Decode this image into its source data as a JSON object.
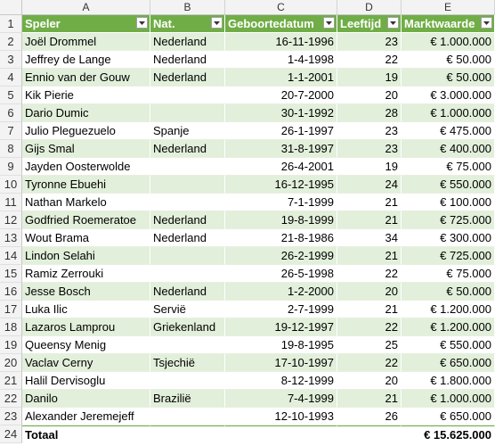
{
  "columns": [
    "A",
    "B",
    "C",
    "D",
    "E"
  ],
  "header_row_number": "1",
  "headers": [
    "Speler",
    "Nat.",
    "Geboortedatum",
    "Leeftijd",
    "Marktwaarde"
  ],
  "rows": [
    {
      "n": "2",
      "speler": "Joël Drommel",
      "nat": "Nederland",
      "geb": "16-11-1996",
      "leeftijd": "23",
      "waarde": "€ 1.000.000"
    },
    {
      "n": "3",
      "speler": "Jeffrey de Lange",
      "nat": "Nederland",
      "geb": "1-4-1998",
      "leeftijd": "22",
      "waarde": "€ 50.000"
    },
    {
      "n": "4",
      "speler": "Ennio van der Gouw",
      "nat": "Nederland",
      "geb": "1-1-2001",
      "leeftijd": "19",
      "waarde": "€ 50.000"
    },
    {
      "n": "5",
      "speler": "Kik Pierie",
      "nat": "",
      "geb": "20-7-2000",
      "leeftijd": "20",
      "waarde": "€ 3.000.000"
    },
    {
      "n": "6",
      "speler": "Dario Dumic",
      "nat": "",
      "geb": "30-1-1992",
      "leeftijd": "28",
      "waarde": "€ 1.000.000"
    },
    {
      "n": "7",
      "speler": "Julio Pleguezuelo",
      "nat": "Spanje",
      "geb": "26-1-1997",
      "leeftijd": "23",
      "waarde": "€ 475.000"
    },
    {
      "n": "8",
      "speler": "Gijs Smal",
      "nat": "Nederland",
      "geb": "31-8-1997",
      "leeftijd": "23",
      "waarde": "€ 400.000"
    },
    {
      "n": "9",
      "speler": "Jayden Oosterwolde",
      "nat": "",
      "geb": "26-4-2001",
      "leeftijd": "19",
      "waarde": "€ 75.000"
    },
    {
      "n": "10",
      "speler": "Tyronne Ebuehi",
      "nat": "",
      "geb": "16-12-1995",
      "leeftijd": "24",
      "waarde": "€ 550.000"
    },
    {
      "n": "11",
      "speler": "Nathan Markelo",
      "nat": "",
      "geb": "7-1-1999",
      "leeftijd": "21",
      "waarde": "€ 100.000"
    },
    {
      "n": "12",
      "speler": "Godfried Roemeratoe",
      "nat": "Nederland",
      "geb": "19-8-1999",
      "leeftijd": "21",
      "waarde": "€ 725.000"
    },
    {
      "n": "13",
      "speler": "Wout Brama",
      "nat": "Nederland",
      "geb": "21-8-1986",
      "leeftijd": "34",
      "waarde": "€ 300.000"
    },
    {
      "n": "14",
      "speler": "Lindon Selahi",
      "nat": "",
      "geb": "26-2-1999",
      "leeftijd": "21",
      "waarde": "€ 725.000"
    },
    {
      "n": "15",
      "speler": "Ramiz Zerrouki",
      "nat": "",
      "geb": "26-5-1998",
      "leeftijd": "22",
      "waarde": "€ 75.000"
    },
    {
      "n": "16",
      "speler": "Jesse Bosch",
      "nat": "Nederland",
      "geb": "1-2-2000",
      "leeftijd": "20",
      "waarde": "€ 50.000"
    },
    {
      "n": "17",
      "speler": "Luka Ilic",
      "nat": "Servië",
      "geb": "2-7-1999",
      "leeftijd": "21",
      "waarde": "€ 1.200.000"
    },
    {
      "n": "18",
      "speler": "Lazaros Lamprou",
      "nat": "Griekenland",
      "geb": "19-12-1997",
      "leeftijd": "22",
      "waarde": "€ 1.200.000"
    },
    {
      "n": "19",
      "speler": "Queensy Menig",
      "nat": "",
      "geb": "19-8-1995",
      "leeftijd": "25",
      "waarde": "€ 550.000"
    },
    {
      "n": "20",
      "speler": "Vaclav Cerny",
      "nat": "Tsjechië",
      "geb": "17-10-1997",
      "leeftijd": "22",
      "waarde": "€ 650.000"
    },
    {
      "n": "21",
      "speler": "Halil Dervisoglu",
      "nat": "",
      "geb": "8-12-1999",
      "leeftijd": "20",
      "waarde": "€ 1.800.000"
    },
    {
      "n": "22",
      "speler": "Danilo",
      "nat": "Brazilië",
      "geb": "7-4-1999",
      "leeftijd": "21",
      "waarde": "€ 1.000.000"
    },
    {
      "n": "23",
      "speler": "Alexander Jeremejeff",
      "nat": "",
      "geb": "12-10-1993",
      "leeftijd": "26",
      "waarde": "€ 650.000"
    }
  ],
  "total": {
    "n": "24",
    "label": "Totaal",
    "waarde": "€ 15.625.000"
  },
  "colors": {
    "header_fill": "#70ad47",
    "band_fill": "#e2efda",
    "header_text": "#ffffff"
  },
  "icons": {
    "filter": "dropdown-arrow-icon"
  }
}
